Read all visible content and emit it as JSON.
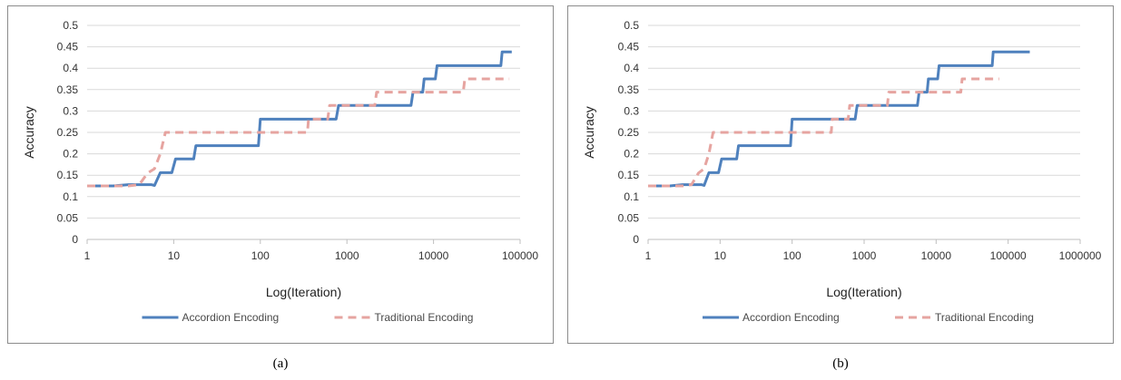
{
  "captions": [
    "(a)",
    "(b)"
  ],
  "chart_data": [
    {
      "type": "line",
      "title": "",
      "xlabel": "Log(Iteration)",
      "ylabel": "Accuracy",
      "xscale": "log",
      "xticks": [
        "1",
        "10",
        "100",
        "1000",
        "10000",
        "100000"
      ],
      "xlim": [
        1,
        100000
      ],
      "yticks": [
        "0",
        "0.05",
        "0.1",
        "0.15",
        "0.2",
        "0.25",
        "0.3",
        "0.35",
        "0.4",
        "0.45",
        "0.5"
      ],
      "ylim": [
        0,
        0.5
      ],
      "grid": "horizontal",
      "legend": "bottom",
      "series": [
        {
          "name": "Accordion Encoding",
          "color": "#4f81bd",
          "style": "solid",
          "points": [
            [
              1,
              0.125
            ],
            [
              2,
              0.125
            ],
            [
              3,
              0.128
            ],
            [
              5.5,
              0.128
            ],
            [
              6,
              0.126
            ],
            [
              7,
              0.156
            ],
            [
              9.5,
              0.156
            ],
            [
              10.5,
              0.188
            ],
            [
              17,
              0.188
            ],
            [
              18,
              0.219
            ],
            [
              95,
              0.219
            ],
            [
              100,
              0.281
            ],
            [
              750,
              0.281
            ],
            [
              800,
              0.313
            ],
            [
              5500,
              0.313
            ],
            [
              5800,
              0.344
            ],
            [
              7500,
              0.344
            ],
            [
              7800,
              0.375
            ],
            [
              10500,
              0.375
            ],
            [
              11000,
              0.406
            ],
            [
              60000,
              0.406
            ],
            [
              62000,
              0.438
            ],
            [
              80000,
              0.438
            ]
          ]
        },
        {
          "name": "Traditional  Encoding",
          "color": "#e6a4a0",
          "style": "dashed",
          "points": [
            [
              1,
              0.125
            ],
            [
              3,
              0.125
            ],
            [
              4,
              0.128
            ],
            [
              5,
              0.155
            ],
            [
              6,
              0.165
            ],
            [
              7,
              0.2
            ],
            [
              8,
              0.25
            ],
            [
              350,
              0.25
            ],
            [
              360,
              0.281
            ],
            [
              600,
              0.281
            ],
            [
              630,
              0.313
            ],
            [
              2100,
              0.313
            ],
            [
              2200,
              0.344
            ],
            [
              22000,
              0.344
            ],
            [
              23000,
              0.375
            ],
            [
              75000,
              0.375
            ]
          ]
        }
      ]
    },
    {
      "type": "line",
      "title": "",
      "xlabel": "Log(Iteration)",
      "ylabel": "Accuracy",
      "xscale": "log",
      "xticks": [
        "1",
        "10",
        "100",
        "1000",
        "10000",
        "100000",
        "1000000"
      ],
      "xlim": [
        1,
        1000000
      ],
      "yticks": [
        "0",
        "0.05",
        "0.1",
        "0.15",
        "0.2",
        "0.25",
        "0.3",
        "0.35",
        "0.4",
        "0.45",
        "0.5"
      ],
      "ylim": [
        0,
        0.5
      ],
      "grid": "horizontal",
      "legend": "bottom",
      "series": [
        {
          "name": "Accordion Encoding",
          "color": "#4f81bd",
          "style": "solid",
          "points": [
            [
              1,
              0.125
            ],
            [
              2,
              0.125
            ],
            [
              3,
              0.128
            ],
            [
              5.5,
              0.128
            ],
            [
              6,
              0.126
            ],
            [
              7,
              0.156
            ],
            [
              9.5,
              0.156
            ],
            [
              10.5,
              0.188
            ],
            [
              17,
              0.188
            ],
            [
              18,
              0.219
            ],
            [
              95,
              0.219
            ],
            [
              100,
              0.281
            ],
            [
              750,
              0.281
            ],
            [
              800,
              0.313
            ],
            [
              5500,
              0.313
            ],
            [
              5800,
              0.344
            ],
            [
              7500,
              0.344
            ],
            [
              7800,
              0.375
            ],
            [
              10500,
              0.375
            ],
            [
              11000,
              0.406
            ],
            [
              60000,
              0.406
            ],
            [
              62000,
              0.438
            ],
            [
              200000,
              0.438
            ]
          ]
        },
        {
          "name": "Traditional  Encoding",
          "color": "#e6a4a0",
          "style": "dashed",
          "points": [
            [
              1,
              0.125
            ],
            [
              3,
              0.125
            ],
            [
              4,
              0.128
            ],
            [
              5,
              0.155
            ],
            [
              6,
              0.165
            ],
            [
              7,
              0.2
            ],
            [
              8,
              0.25
            ],
            [
              350,
              0.25
            ],
            [
              360,
              0.281
            ],
            [
              600,
              0.281
            ],
            [
              630,
              0.313
            ],
            [
              2100,
              0.313
            ],
            [
              2200,
              0.344
            ],
            [
              22000,
              0.344
            ],
            [
              23000,
              0.375
            ],
            [
              75000,
              0.375
            ]
          ]
        }
      ]
    }
  ]
}
